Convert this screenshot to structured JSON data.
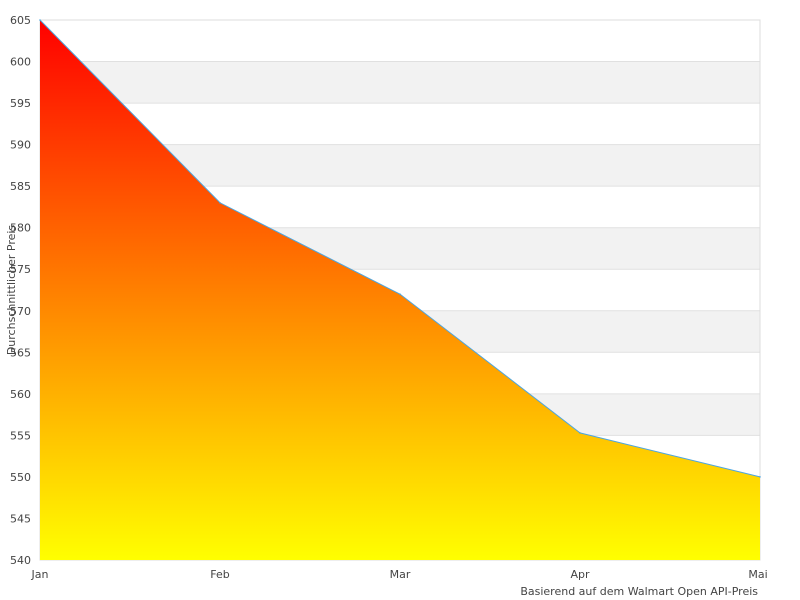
{
  "chart_data": {
    "type": "area",
    "categories": [
      "Jan",
      "Feb",
      "Mar",
      "Apr",
      "Mai"
    ],
    "series": [
      {
        "values": [
          605,
          583,
          572,
          555.3,
          550
        ]
      }
    ],
    "ylabel": "Durchschnittlicher Preis",
    "xlabel": "",
    "footnote": "Basierend auf dem Walmart Open API-Preis",
    "ylim": [
      540,
      605
    ],
    "yticks": [
      540,
      545,
      550,
      555,
      560,
      565,
      570,
      575,
      580,
      585,
      590,
      595,
      600,
      605
    ],
    "grid": "alternating horizontal bands",
    "fill_gradient": [
      "#ff0000",
      "#ffff00"
    ],
    "line_color": "#4da6e0",
    "band_color": "#f2f2f2"
  }
}
